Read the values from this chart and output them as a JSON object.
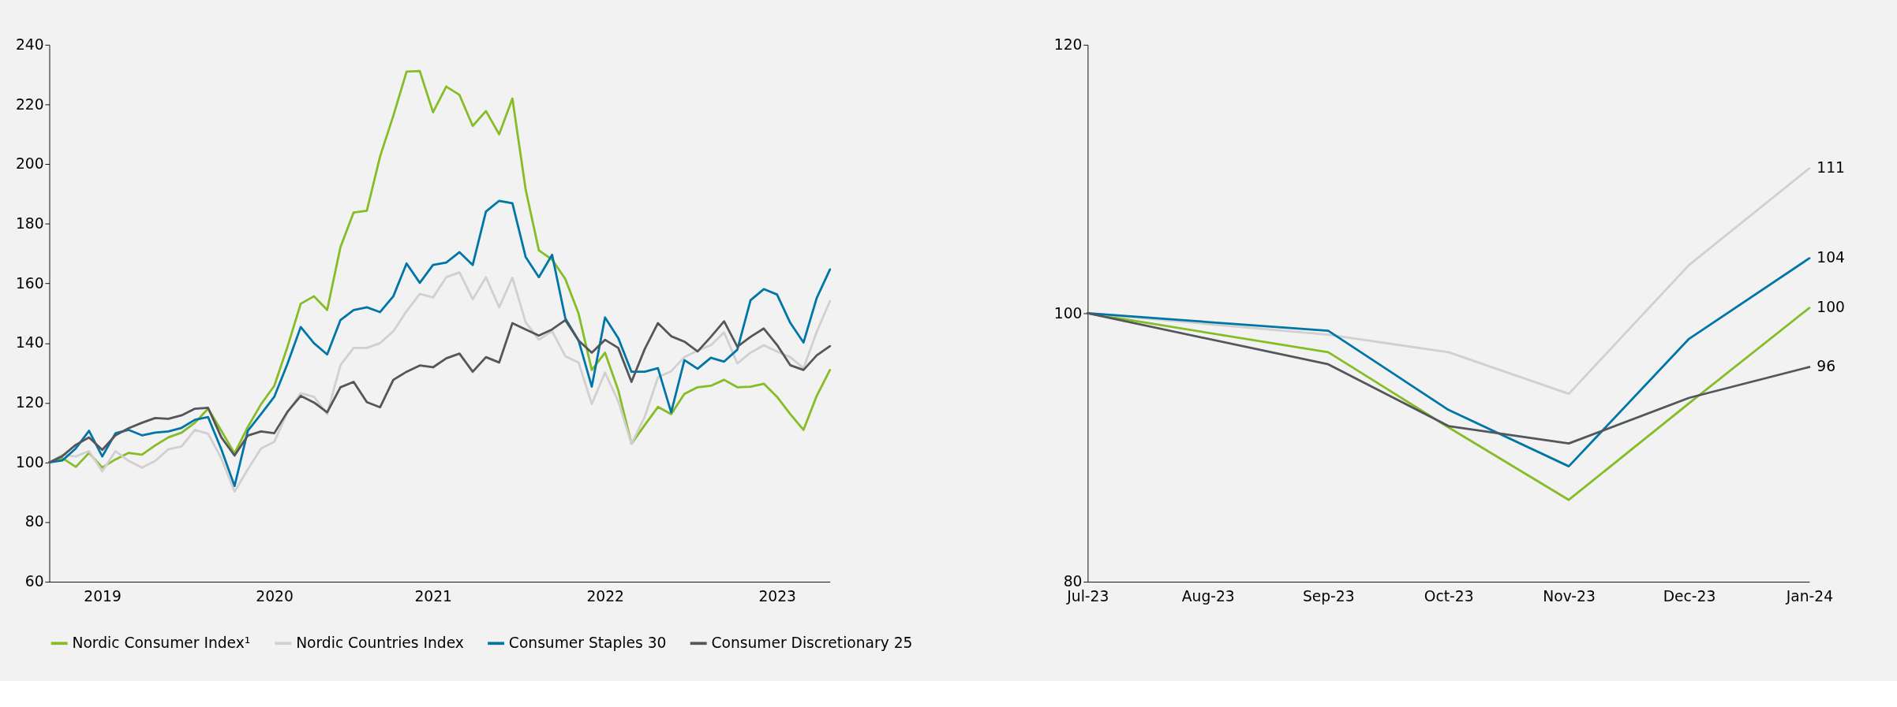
{
  "chart_data": [
    {
      "type": "line",
      "legend": "bottom",
      "ylim": [
        60,
        240
      ],
      "yticks": [
        60,
        80,
        100,
        120,
        140,
        160,
        180,
        200,
        220,
        240
      ],
      "categories": [
        null,
        null,
        null,
        null,
        "2019",
        null,
        null,
        null,
        null,
        null,
        null,
        null,
        null,
        null,
        null,
        null,
        null,
        "2020",
        null,
        null,
        null,
        null,
        null,
        null,
        null,
        null,
        null,
        null,
        null,
        "2021",
        null,
        null,
        null,
        null,
        null,
        null,
        null,
        null,
        null,
        null,
        null,
        null,
        "2022",
        null,
        null,
        null,
        null,
        null,
        null,
        null,
        null,
        null,
        null,
        null,
        null,
        "2023",
        null,
        null,
        null,
        null
      ],
      "series": [
        {
          "name": "Nordic Consumer Index¹",
          "color": "#86bc25",
          "values": [
            100,
            101.4,
            98.5,
            103.2,
            98.3,
            101,
            103.2,
            102.6,
            105.7,
            108.4,
            110,
            113.3,
            118,
            110.6,
            103,
            111.9,
            119.5,
            125.7,
            138.8,
            153.2,
            155.7,
            151.1,
            172.1,
            183.8,
            184.4,
            202.6,
            216.2,
            231,
            231.2,
            217.4,
            226,
            223.2,
            212.8,
            217.8,
            210,
            222,
            191.5,
            171.1,
            168,
            161.5,
            149.9,
            131,
            136.8,
            124.2,
            106.3,
            112.5,
            118.6,
            116.2,
            123,
            125.2,
            125.7,
            127.7,
            125.2,
            125.4,
            126.4,
            122,
            116.2,
            110.9,
            122.3,
            131
          ]
        },
        {
          "name": "Nordic Countries Index",
          "color": "#d0d0d0",
          "values": [
            100,
            102.6,
            102,
            103.8,
            97,
            103.8,
            100.5,
            98.3,
            100.5,
            104.4,
            105.4,
            110.9,
            109.6,
            101.4,
            90.2,
            97.7,
            104.7,
            106.9,
            116.8,
            123.2,
            122,
            116.2,
            132.6,
            138.4,
            138.4,
            140,
            144,
            150.7,
            156.5,
            155.3,
            162.1,
            163.7,
            154.7,
            162.1,
            152,
            161.9,
            147,
            141.1,
            144,
            135.6,
            133.5,
            119.6,
            130.1,
            120.5,
            106.3,
            115.3,
            128.5,
            130.6,
            135.3,
            137.5,
            139.3,
            143.6,
            133.2,
            136.8,
            139.3,
            137.2,
            135.3,
            131.6,
            143.7,
            154.1
          ]
        },
        {
          "name": "Consumer Staples 30",
          "color": "#0076a8",
          "values": [
            100,
            100.7,
            104.7,
            110.6,
            102,
            109.8,
            110.9,
            109.1,
            110,
            110.4,
            111.6,
            114.3,
            115.2,
            104.4,
            92.1,
            110.6,
            116.2,
            122,
            133.1,
            145.4,
            140,
            136.2,
            147.7,
            151.1,
            152,
            150.4,
            155.7,
            166.7,
            160.2,
            166.2,
            167,
            170.5,
            166.2,
            184.1,
            187.7,
            186.9,
            168.9,
            162.1,
            169.6,
            148.3,
            140.9,
            125.4,
            148.6,
            141.7,
            130.4,
            130.4,
            131.6,
            116.8,
            134.3,
            131.4,
            135.1,
            133.8,
            137.8,
            154.4,
            158.1,
            156.3,
            146.8,
            140.2,
            155.1,
            164.7
          ]
        },
        {
          "name": "Consumer Discretionary 25",
          "color": "#53565a",
          "values": [
            100,
            102.2,
            105.9,
            108.4,
            104.2,
            109.1,
            111.5,
            113.3,
            114.9,
            114.6,
            115.8,
            118,
            118.3,
            108.4,
            102.3,
            109,
            110.4,
            109.8,
            117,
            122.3,
            120.1,
            116.8,
            125.2,
            127,
            120.2,
            118.5,
            127.7,
            130.4,
            132.5,
            131.9,
            134.9,
            136.5,
            130.4,
            135.3,
            133.5,
            146.7,
            144.6,
            142.5,
            144.6,
            147.7,
            140.9,
            136.8,
            141.1,
            138.4,
            127,
            138,
            146.7,
            142.3,
            140.5,
            137.2,
            142.1,
            147.3,
            138.8,
            142.1,
            144.9,
            139.4,
            132.6,
            131,
            135.9,
            139
          ]
        }
      ]
    },
    {
      "type": "line",
      "ylim": [
        80,
        120
      ],
      "yticks": [
        80,
        100,
        120
      ],
      "categories": [
        "Jul-23",
        "Aug-23",
        "Sep-23",
        "Oct-23",
        "Nov-23",
        "Dec-23",
        "Jan-24"
      ],
      "series": [
        {
          "color": "#86bc25",
          "values": [
            100,
            null,
            97.1,
            91.5,
            86.1,
            93.3,
            100.4
          ],
          "value_labels": [
            null,
            null,
            null,
            null,
            null,
            null,
            "100"
          ]
        },
        {
          "color": "#d0d0d0",
          "values": [
            100,
            null,
            98.4,
            97.1,
            94.0,
            103.6,
            110.8
          ],
          "value_labels": [
            null,
            null,
            null,
            null,
            null,
            null,
            "111"
          ]
        },
        {
          "color": "#0076a8",
          "values": [
            100,
            null,
            98.7,
            92.8,
            88.6,
            98.1,
            104.1
          ],
          "value_labels": [
            null,
            null,
            null,
            null,
            null,
            null,
            "104"
          ]
        },
        {
          "color": "#53565a",
          "values": [
            100,
            null,
            96.2,
            91.6,
            90.3,
            93.7,
            96.0
          ],
          "value_labels": [
            null,
            null,
            null,
            null,
            null,
            null,
            "96"
          ]
        }
      ]
    }
  ]
}
